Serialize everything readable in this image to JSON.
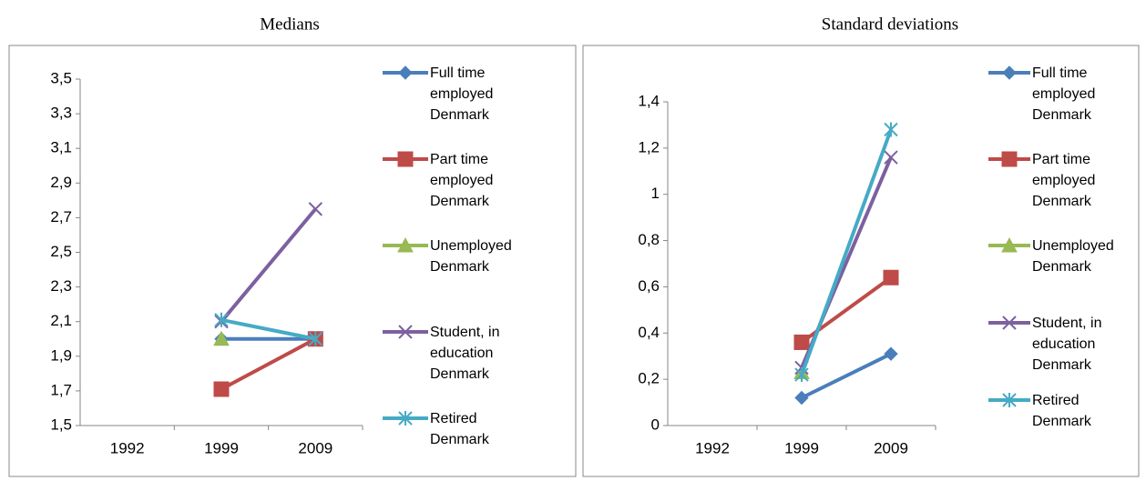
{
  "chart_data": [
    {
      "type": "line",
      "title": "Medians",
      "categories": [
        "1992",
        "1999",
        "2009"
      ],
      "ylim": [
        1.5,
        3.5
      ],
      "yticks": [
        {
          "value": 1.5,
          "label": "1,5"
        },
        {
          "value": 1.7,
          "label": "1,7"
        },
        {
          "value": 1.9,
          "label": "1,9"
        },
        {
          "value": 2.1,
          "label": "2,1"
        },
        {
          "value": 2.3,
          "label": "2,3"
        },
        {
          "value": 2.5,
          "label": "2,5"
        },
        {
          "value": 2.7,
          "label": "2,7"
        },
        {
          "value": 2.9,
          "label": "2,9"
        },
        {
          "value": 3.1,
          "label": "3,1"
        },
        {
          "value": 3.3,
          "label": "3,3"
        },
        {
          "value": 3.5,
          "label": "3,5"
        }
      ],
      "grid": false,
      "legend": "right",
      "series": [
        {
          "name": "Full time employed Denmark",
          "color": "#4a7ebb",
          "values": [
            null,
            2.0,
            2.0
          ]
        },
        {
          "name": "Part time employed Denmark",
          "color": "#be4b48",
          "values": [
            null,
            1.71,
            2.0
          ]
        },
        {
          "name": "Unemployed Denmark",
          "color": "#98b954",
          "values": [
            null,
            2.0,
            null
          ]
        },
        {
          "name": "Student, in education Denmark",
          "color": "#7d60a0",
          "values": [
            null,
            2.1,
            2.75
          ]
        },
        {
          "name": "Retired Denmark",
          "color": "#46aac5",
          "values": [
            null,
            2.11,
            2.0
          ]
        }
      ]
    },
    {
      "type": "line",
      "title": "Standard deviations",
      "categories": [
        "1992",
        "1999",
        "2009"
      ],
      "ylim": [
        0,
        1.4
      ],
      "yticks": [
        0,
        {
          "value": 0.2,
          "label": "0,2"
        },
        {
          "value": 0.4,
          "label": "0,4"
        },
        {
          "value": 0.6,
          "label": "0,6"
        },
        {
          "value": 0.8,
          "label": "0,8"
        },
        1,
        {
          "value": 1.2,
          "label": "1,2"
        },
        {
          "value": 1.4,
          "label": "1,4"
        }
      ],
      "grid": false,
      "legend": "right",
      "series": [
        {
          "name": "Full time employed Denmark",
          "color": "#4a7ebb",
          "values": [
            null,
            0.12,
            0.31
          ]
        },
        {
          "name": "Part time employed Denmark",
          "color": "#be4b48",
          "values": [
            null,
            0.36,
            0.64
          ]
        },
        {
          "name": "Unemployed Denmark",
          "color": "#98b954",
          "values": [
            null,
            0.23,
            null
          ]
        },
        {
          "name": "Student, in education Denmark",
          "color": "#7d60a0",
          "values": [
            null,
            0.25,
            1.16
          ]
        },
        {
          "name": "Retired Denmark",
          "color": "#46aac5",
          "values": [
            null,
            0.22,
            1.28
          ]
        }
      ]
    }
  ]
}
